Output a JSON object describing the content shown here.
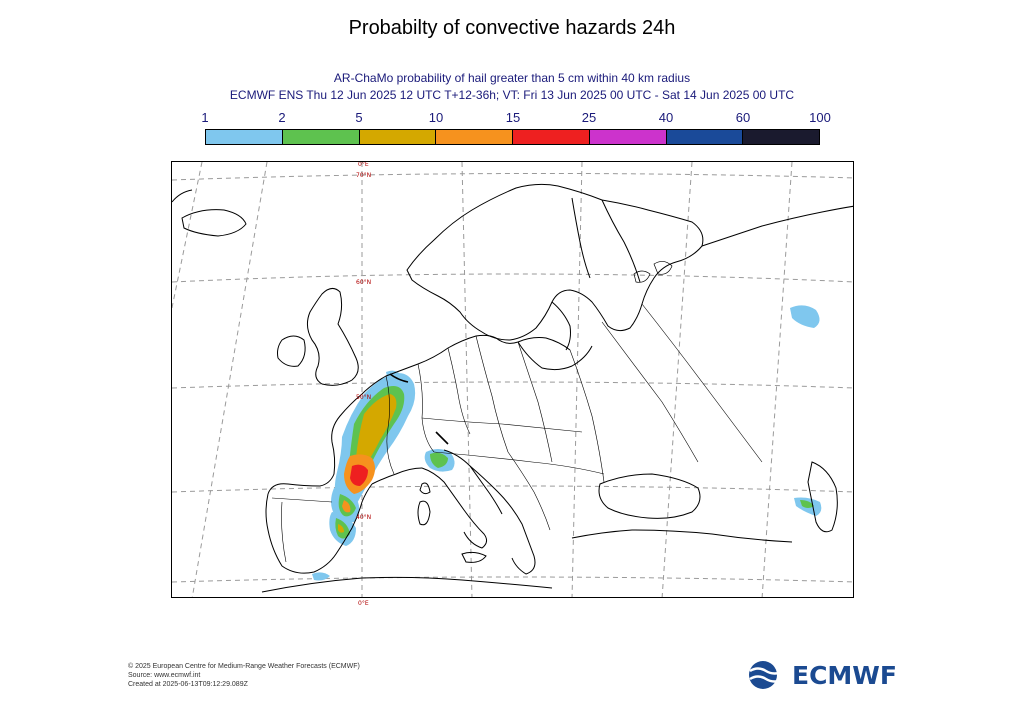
{
  "title": "Probabilty of convective hazards 24h",
  "subtitle_line1": "AR-ChaMo probability of hail greater than 5 cm within 40 km radius",
  "subtitle_line2": "ECMWF ENS Thu 12 Jun 2025 12 UTC T+12-36h; VT: Fri 13 Jun 2025 00 UTC - Sat 14 Jun 2025 00 UTC",
  "legend": {
    "ticks": [
      "1",
      "2",
      "5",
      "10",
      "15",
      "25",
      "40",
      "60",
      "100"
    ],
    "colors": [
      "#7fc7ee",
      "#5ec24f",
      "#d4a800",
      "#f6921e",
      "#ee2020",
      "#cc33cc",
      "#1a4a99",
      "#1a1a2e"
    ]
  },
  "map": {
    "lon_label_top": "0°E",
    "lon_label_bottom": "0°E",
    "lat_labels": [
      "70°N",
      "60°N",
      "50°N",
      "40°N"
    ],
    "coastline_color": "#000000",
    "grid_color": "#9a9a9a"
  },
  "footer": {
    "line1": "© 2025 European Centre for Medium-Range Weather Forecasts (ECMWF)",
    "line2": "Source: www.ecmwf.int",
    "line3": "Created at 2025-06-13T09:12:29.089Z"
  },
  "logo": {
    "text": "ECMWF",
    "color": "#1b4a91"
  }
}
